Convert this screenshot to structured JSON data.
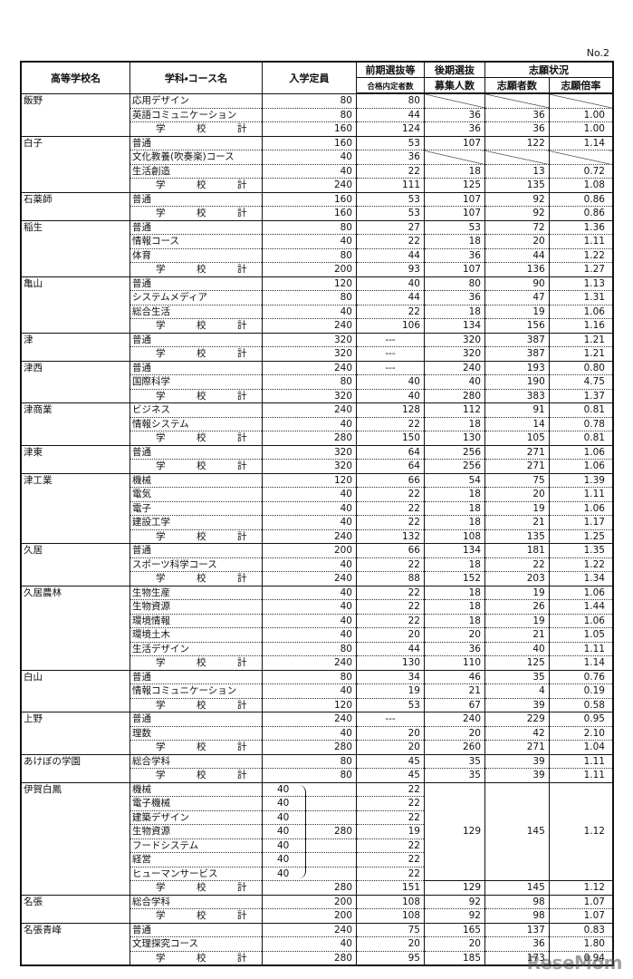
{
  "page_number": "No.2",
  "headers": {
    "school": "高等学校名",
    "course": "学科・コース名",
    "capacity": "入学定員",
    "early_1": "前期選抜等",
    "early_2": "合格内定者数",
    "late_1": "後期選抜",
    "late_2": "募集人数",
    "status": "志願状況",
    "applicants": "志願者数",
    "ratio": "志願倍率"
  },
  "total_label": "学　校　計",
  "schools": [
    {
      "name": "飯野",
      "rows": [
        {
          "course": "応用デザイン",
          "capacity": "80",
          "early": "80"
        },
        {
          "course": "英語コミュニケーション",
          "capacity": "80",
          "early": "44",
          "late": "36",
          "applicants": "36",
          "ratio": "1.00"
        }
      ],
      "total": {
        "capacity": "160",
        "early": "124",
        "late": "36",
        "applicants": "36",
        "ratio": "1.00"
      }
    },
    {
      "name": "白子",
      "rows": [
        {
          "course": "普通",
          "capacity": "160",
          "early": "53",
          "late": "107",
          "applicants": "122",
          "ratio": "1.14"
        },
        {
          "course": "文化教養(吹奏楽)コース",
          "capacity": "40",
          "early": "36"
        },
        {
          "course": "生活創造",
          "capacity": "40",
          "early": "22",
          "late": "18",
          "applicants": "13",
          "ratio": "0.72"
        }
      ],
      "total": {
        "capacity": "240",
        "early": "111",
        "late": "125",
        "applicants": "135",
        "ratio": "1.08"
      }
    },
    {
      "name": "石薬師",
      "rows": [
        {
          "course": "普通",
          "capacity": "160",
          "early": "53",
          "late": "107",
          "applicants": "92",
          "ratio": "0.86"
        }
      ],
      "total": {
        "capacity": "160",
        "early": "53",
        "late": "107",
        "applicants": "92",
        "ratio": "0.86"
      }
    },
    {
      "name": "稲生",
      "rows": [
        {
          "course": "普通",
          "capacity": "80",
          "early": "27",
          "late": "53",
          "applicants": "72",
          "ratio": "1.36"
        },
        {
          "course": "情報コース",
          "capacity": "40",
          "early": "22",
          "late": "18",
          "applicants": "20",
          "ratio": "1.11"
        },
        {
          "course": "体育",
          "capacity": "80",
          "early": "44",
          "late": "36",
          "applicants": "44",
          "ratio": "1.22"
        }
      ],
      "total": {
        "capacity": "200",
        "early": "93",
        "late": "107",
        "applicants": "136",
        "ratio": "1.27"
      }
    },
    {
      "name": "亀山",
      "rows": [
        {
          "course": "普通",
          "capacity": "120",
          "early": "40",
          "late": "80",
          "applicants": "90",
          "ratio": "1.13"
        },
        {
          "course": "システムメディア",
          "capacity": "80",
          "early": "44",
          "late": "36",
          "applicants": "47",
          "ratio": "1.31"
        },
        {
          "course": "総合生活",
          "capacity": "40",
          "early": "22",
          "late": "18",
          "applicants": "19",
          "ratio": "1.06"
        }
      ],
      "total": {
        "capacity": "240",
        "early": "106",
        "late": "134",
        "applicants": "156",
        "ratio": "1.16"
      }
    },
    {
      "name": "津",
      "rows": [
        {
          "course": "普通",
          "capacity": "320",
          "early": "---",
          "late": "320",
          "applicants": "387",
          "ratio": "1.21"
        }
      ],
      "total": {
        "capacity": "320",
        "early": "---",
        "late": "320",
        "applicants": "387",
        "ratio": "1.21"
      }
    },
    {
      "name": "津西",
      "rows": [
        {
          "course": "普通",
          "capacity": "240",
          "early": "---",
          "late": "240",
          "applicants": "193",
          "ratio": "0.80"
        },
        {
          "course": "国際科学",
          "capacity": "80",
          "early": "40",
          "late": "40",
          "applicants": "190",
          "ratio": "4.75"
        }
      ],
      "total": {
        "capacity": "320",
        "early": "40",
        "late": "280",
        "applicants": "383",
        "ratio": "1.37"
      }
    },
    {
      "name": "津商業",
      "rows": [
        {
          "course": "ビジネス",
          "capacity": "240",
          "early": "128",
          "late": "112",
          "applicants": "91",
          "ratio": "0.81"
        },
        {
          "course": "情報システム",
          "capacity": "40",
          "early": "22",
          "late": "18",
          "applicants": "14",
          "ratio": "0.78"
        }
      ],
      "total": {
        "capacity": "280",
        "early": "150",
        "late": "130",
        "applicants": "105",
        "ratio": "0.81"
      }
    },
    {
      "name": "津東",
      "rows": [
        {
          "course": "普通",
          "capacity": "320",
          "early": "64",
          "late": "256",
          "applicants": "271",
          "ratio": "1.06"
        }
      ],
      "total": {
        "capacity": "320",
        "early": "64",
        "late": "256",
        "applicants": "271",
        "ratio": "1.06"
      }
    },
    {
      "name": "津工業",
      "rows": [
        {
          "course": "機械",
          "capacity": "120",
          "early": "66",
          "late": "54",
          "applicants": "75",
          "ratio": "1.39"
        },
        {
          "course": "電気",
          "capacity": "40",
          "early": "22",
          "late": "18",
          "applicants": "20",
          "ratio": "1.11"
        },
        {
          "course": "電子",
          "capacity": "40",
          "early": "22",
          "late": "18",
          "applicants": "19",
          "ratio": "1.06"
        },
        {
          "course": "建設工学",
          "capacity": "40",
          "early": "22",
          "late": "18",
          "applicants": "21",
          "ratio": "1.17"
        }
      ],
      "total": {
        "capacity": "240",
        "early": "132",
        "late": "108",
        "applicants": "135",
        "ratio": "1.25"
      }
    },
    {
      "name": "久居",
      "rows": [
        {
          "course": "普通",
          "capacity": "200",
          "early": "66",
          "late": "134",
          "applicants": "181",
          "ratio": "1.35"
        },
        {
          "course": "スポーツ科学コース",
          "capacity": "40",
          "early": "22",
          "late": "18",
          "applicants": "22",
          "ratio": "1.22"
        }
      ],
      "total": {
        "capacity": "240",
        "early": "88",
        "late": "152",
        "applicants": "203",
        "ratio": "1.34"
      }
    },
    {
      "name": "久居農林",
      "rows": [
        {
          "course": "生物生産",
          "capacity": "40",
          "early": "22",
          "late": "18",
          "applicants": "19",
          "ratio": "1.06"
        },
        {
          "course": "生物資源",
          "capacity": "40",
          "early": "22",
          "late": "18",
          "applicants": "26",
          "ratio": "1.44"
        },
        {
          "course": "環境情報",
          "capacity": "40",
          "early": "22",
          "late": "18",
          "applicants": "19",
          "ratio": "1.06"
        },
        {
          "course": "環境土木",
          "capacity": "40",
          "early": "20",
          "late": "20",
          "applicants": "21",
          "ratio": "1.05"
        },
        {
          "course": "生活デザイン",
          "capacity": "80",
          "early": "44",
          "late": "36",
          "applicants": "40",
          "ratio": "1.11"
        }
      ],
      "total": {
        "capacity": "240",
        "early": "130",
        "late": "110",
        "applicants": "125",
        "ratio": "1.14"
      }
    },
    {
      "name": "白山",
      "rows": [
        {
          "course": "普通",
          "capacity": "80",
          "early": "34",
          "late": "46",
          "applicants": "35",
          "ratio": "0.76"
        },
        {
          "course": "情報コミュニケーション",
          "capacity": "40",
          "early": "19",
          "late": "21",
          "applicants": "4",
          "ratio": "0.19"
        }
      ],
      "total": {
        "capacity": "120",
        "early": "53",
        "late": "67",
        "applicants": "39",
        "ratio": "0.58"
      }
    },
    {
      "name": "上野",
      "rows": [
        {
          "course": "普通",
          "capacity": "240",
          "early": "---",
          "late": "240",
          "applicants": "229",
          "ratio": "0.95"
        },
        {
          "course": "理数",
          "capacity": "40",
          "early": "20",
          "late": "20",
          "applicants": "42",
          "ratio": "2.10"
        }
      ],
      "total": {
        "capacity": "280",
        "early": "20",
        "late": "260",
        "applicants": "271",
        "ratio": "1.04"
      }
    },
    {
      "name": "あけぼの学園",
      "rows": [
        {
          "course": "総合学科",
          "capacity": "80",
          "early": "45",
          "late": "35",
          "applicants": "39",
          "ratio": "1.11"
        }
      ],
      "total": {
        "capacity": "80",
        "early": "45",
        "late": "35",
        "applicants": "39",
        "ratio": "1.11"
      }
    },
    {
      "name": "伊賀白鳳",
      "rows": [
        {
          "course": "機械",
          "capacity": "40",
          "early": "22"
        },
        {
          "course": "電子機械",
          "capacity": "40",
          "early": "22"
        },
        {
          "course": "建築デザイン",
          "capacity": "40",
          "early": "22"
        },
        {
          "course": "生物資源",
          "capacity": "40",
          "early": "19"
        },
        {
          "course": "フードシステム",
          "capacity": "40",
          "early": "22"
        },
        {
          "course": "経営",
          "capacity": "40",
          "early": "22"
        },
        {
          "course": "ヒューマンサービス",
          "capacity": "40",
          "early": "22"
        }
      ],
      "merged": {
        "capacity": "280",
        "late": "129",
        "applicants": "145",
        "ratio": "1.12"
      },
      "total": {
        "capacity": "280",
        "early": "151",
        "late": "129",
        "applicants": "145",
        "ratio": "1.12"
      }
    },
    {
      "name": "名張",
      "rows": [
        {
          "course": "総合学科",
          "capacity": "200",
          "early": "108",
          "late": "92",
          "applicants": "98",
          "ratio": "1.07"
        }
      ],
      "total": {
        "capacity": "200",
        "early": "108",
        "late": "92",
        "applicants": "98",
        "ratio": "1.07"
      }
    },
    {
      "name": "名張青峰",
      "rows": [
        {
          "course": "普通",
          "capacity": "240",
          "early": "75",
          "late": "165",
          "applicants": "137",
          "ratio": "0.83"
        },
        {
          "course": "文理探究コース",
          "capacity": "40",
          "early": "20",
          "late": "20",
          "applicants": "36",
          "ratio": "1.80"
        }
      ],
      "total": {
        "capacity": "280",
        "early": "95",
        "late": "185",
        "applicants": "173",
        "ratio": "0.94"
      }
    }
  ],
  "watermark": "ReseMom"
}
